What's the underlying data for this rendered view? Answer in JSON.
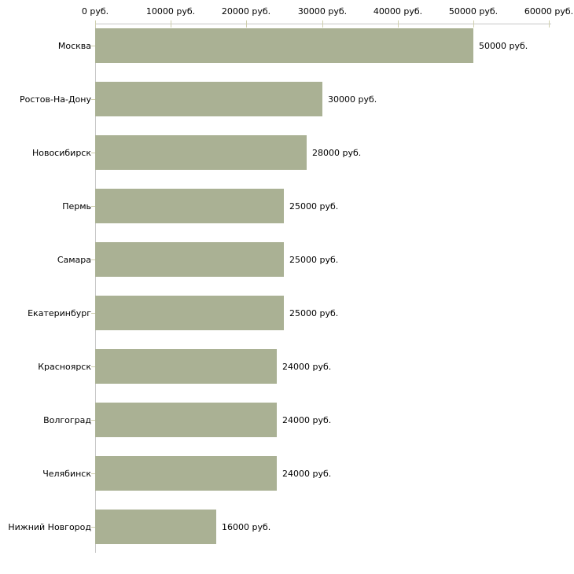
{
  "chart_data": {
    "type": "bar",
    "orientation": "horizontal",
    "title": "",
    "xlabel": "",
    "ylabel": "",
    "unit": "руб.",
    "xlim": [
      0,
      60000
    ],
    "grid": false,
    "legend": false,
    "categories": [
      "Москва",
      "Ростов-На-Дону",
      "Новосибирск",
      "Пермь",
      "Самара",
      "Екатеринбург",
      "Красноярск",
      "Волгоград",
      "Челябинск",
      "Нижний Новгород"
    ],
    "values": [
      50000,
      30000,
      28000,
      25000,
      25000,
      25000,
      24000,
      24000,
      24000,
      16000
    ],
    "points": [
      {
        "category": "Москва",
        "value": 50000,
        "label": "50000 руб."
      },
      {
        "category": "Ростов-На-Дону",
        "value": 30000,
        "label": "30000 руб."
      },
      {
        "category": "Новосибирск",
        "value": 28000,
        "label": "28000 руб."
      },
      {
        "category": "Пермь",
        "value": 25000,
        "label": "25000 руб."
      },
      {
        "category": "Самара",
        "value": 25000,
        "label": "25000 руб."
      },
      {
        "category": "Екатеринбург",
        "value": 25000,
        "label": "25000 руб."
      },
      {
        "category": "Красноярск",
        "value": 24000,
        "label": "24000 руб."
      },
      {
        "category": "Волгоград",
        "value": 24000,
        "label": "24000 руб."
      },
      {
        "category": "Челябинск",
        "value": 24000,
        "label": "24000 руб."
      },
      {
        "category": "Нижний Новгород",
        "value": 16000,
        "label": "16000 руб."
      }
    ],
    "x_ticks": [
      {
        "value": 0,
        "label": "0 руб."
      },
      {
        "value": 10000,
        "label": "10000 руб."
      },
      {
        "value": 20000,
        "label": "20000 руб."
      },
      {
        "value": 30000,
        "label": "30000 руб."
      },
      {
        "value": 40000,
        "label": "40000 руб."
      },
      {
        "value": 50000,
        "label": "50000 руб."
      },
      {
        "value": 60000,
        "label": "60000 руб."
      }
    ],
    "colors": {
      "bar": "#aab194",
      "axis_line": "#c6c6c6",
      "tick": "#cfcfad",
      "text": "#000000",
      "background": "#ffffff"
    }
  }
}
